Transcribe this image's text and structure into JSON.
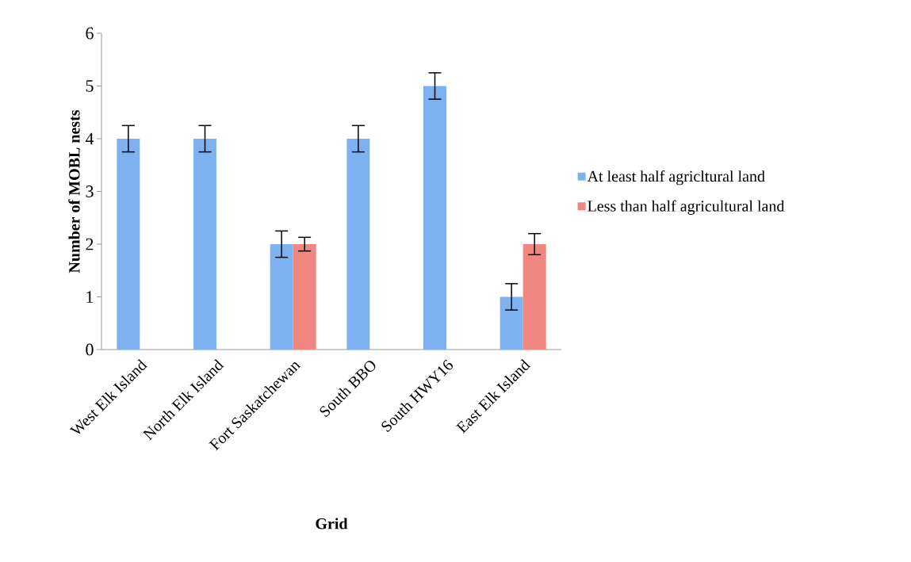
{
  "chart_data": {
    "type": "bar",
    "xlabel": "Grid",
    "ylabel": "Number of MOBL nests",
    "categories": [
      "West Elk Island",
      "North Elk Island",
      "Fort Saskatchewan",
      "South BBO",
      "South HWY16",
      "East Elk Island"
    ],
    "series": [
      {
        "name": "At least half agricltural land",
        "color": "#7eb1ef",
        "values": [
          4,
          4,
          2,
          4,
          5,
          1
        ],
        "errors": [
          0.25,
          0.25,
          0.25,
          0.25,
          0.25,
          0.25
        ]
      },
      {
        "name": "Less than half agricultural land",
        "color": "#ef8880",
        "values": [
          0,
          0,
          2,
          0,
          0,
          2
        ],
        "errors": [
          null,
          null,
          0.13,
          null,
          null,
          0.2
        ]
      }
    ],
    "ylim": [
      0,
      6
    ],
    "yticks": [
      0,
      1,
      2,
      3,
      4,
      5,
      6
    ],
    "legend": "right"
  }
}
